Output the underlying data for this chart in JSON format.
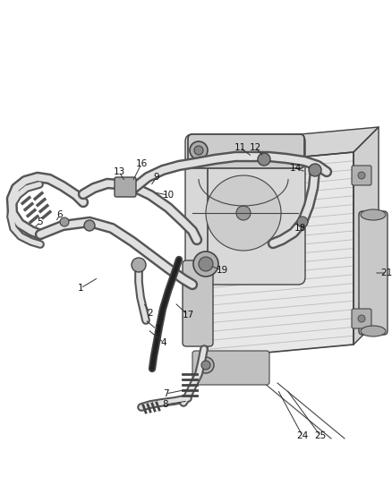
{
  "bg_color": "#ffffff",
  "line_color": "#444444",
  "dark_color": "#222222",
  "label_color": "#111111",
  "figsize": [
    4.38,
    5.33
  ],
  "dpi": 100,
  "hose_outer": "#555555",
  "hose_inner": "#e8e8e8",
  "cond_fill": "#e0e0e0",
  "cond_line": "#444444",
  "fin_color": "#aaaaaa",
  "shroud_fill": "#d0d0d0",
  "tank_fill": "#cccccc",
  "drier_fill": "#c0c0c0"
}
